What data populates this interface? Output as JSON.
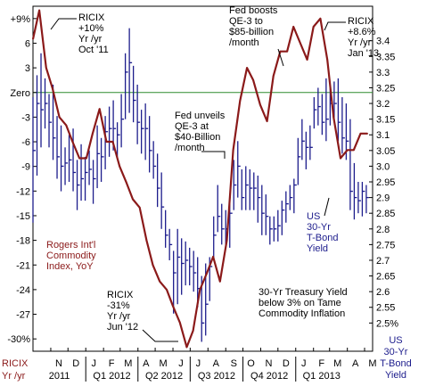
{
  "chart_data": {
    "type": "line",
    "series": [
      {
        "name": "Rogers Int'l Commodity Index, YoY",
        "axis": "left",
        "color": "#8b1a1a",
        "x": [
          "2011-10-01",
          "2011-10-12",
          "2011-10-24",
          "2011-11-04",
          "2011-11-16",
          "2011-11-28",
          "2011-12-09",
          "2011-12-21",
          "2012-01-02",
          "2012-01-13",
          "2012-01-25",
          "2012-02-06",
          "2012-02-17",
          "2012-02-29",
          "2012-03-12",
          "2012-03-23",
          "2012-04-04",
          "2012-04-16",
          "2012-04-27",
          "2012-05-09",
          "2012-05-21",
          "2012-06-01",
          "2012-06-13",
          "2012-06-25",
          "2012-07-06",
          "2012-07-18",
          "2012-07-30",
          "2012-08-10",
          "2012-08-22",
          "2012-09-03",
          "2012-09-14",
          "2012-09-26",
          "2012-10-08",
          "2012-10-19",
          "2012-10-31",
          "2012-11-12",
          "2012-11-23",
          "2012-12-05",
          "2012-12-17",
          "2012-12-28",
          "2013-01-09",
          "2013-01-21",
          "2013-02-01",
          "2013-02-13",
          "2013-02-25",
          "2013-03-08",
          "2013-03-20",
          "2013-04-01",
          "2013-04-12",
          "2013-04-24",
          "2013-05-06"
        ],
        "values": [
          6.5,
          10.0,
          3.0,
          0.5,
          -3.0,
          -4.0,
          -6.0,
          -8.0,
          -8.0,
          -5.0,
          -2.0,
          -6.0,
          -6.0,
          -9.0,
          -11.0,
          -13.0,
          -14.0,
          -18.0,
          -21.0,
          -23.0,
          -24.0,
          -26.0,
          -28.0,
          -31.0,
          -29.0,
          -24.0,
          -22.0,
          -20.0,
          -23.0,
          -18.0,
          -7.0,
          -1.0,
          3.0,
          1.5,
          -1.5,
          -3.5,
          2.0,
          5.0,
          5.0,
          8.0,
          6.0,
          4.0,
          8.0,
          9.0,
          4.0,
          -3.0,
          -8.0,
          -7.0,
          -7.0,
          -5.0,
          -5.0
        ]
      },
      {
        "name": "30-Yr T-Bond Yield",
        "axis": "right",
        "color": "#1c1c8c",
        "type": "hlc",
        "x": [
          "2011-10-01",
          "2011-10-08",
          "2011-10-15",
          "2011-10-22",
          "2011-10-29",
          "2011-11-05",
          "2011-11-12",
          "2011-11-19",
          "2011-11-26",
          "2011-12-03",
          "2011-12-10",
          "2011-12-17",
          "2011-12-24",
          "2011-12-31",
          "2012-01-07",
          "2012-01-14",
          "2012-01-21",
          "2012-01-28",
          "2012-02-04",
          "2012-02-11",
          "2012-02-18",
          "2012-02-25",
          "2012-03-03",
          "2012-03-10",
          "2012-03-17",
          "2012-03-24",
          "2012-03-31",
          "2012-04-07",
          "2012-04-14",
          "2012-04-21",
          "2012-04-28",
          "2012-05-05",
          "2012-05-12",
          "2012-05-19",
          "2012-05-26",
          "2012-06-02",
          "2012-06-09",
          "2012-06-16",
          "2012-06-23",
          "2012-06-30",
          "2012-07-07",
          "2012-07-14",
          "2012-07-21",
          "2012-07-28",
          "2012-08-04",
          "2012-08-11",
          "2012-08-18",
          "2012-08-25",
          "2012-09-01",
          "2012-09-08",
          "2012-09-15",
          "2012-09-22",
          "2012-09-29",
          "2012-10-06",
          "2012-10-13",
          "2012-10-20",
          "2012-10-27",
          "2012-11-03",
          "2012-11-10",
          "2012-11-17",
          "2012-11-24",
          "2012-12-01",
          "2012-12-08",
          "2012-12-15",
          "2012-12-22",
          "2012-12-29",
          "2013-01-05",
          "2013-01-12",
          "2013-01-19",
          "2013-01-26",
          "2013-02-02",
          "2013-02-09",
          "2013-02-16",
          "2013-02-23",
          "2013-03-02",
          "2013-03-09",
          "2013-03-16",
          "2013-03-23",
          "2013-03-30",
          "2013-04-06",
          "2013-04-13",
          "2013-04-20",
          "2013-04-27",
          "2013-05-04"
        ],
        "high": [
          3.22,
          3.29,
          3.36,
          3.28,
          3.23,
          3.26,
          3.16,
          3.13,
          3.06,
          3.1,
          3.12,
          3.02,
          3.07,
          3.03,
          3.05,
          3.02,
          3.13,
          3.09,
          3.16,
          3.19,
          3.21,
          3.14,
          3.23,
          3.36,
          3.44,
          3.32,
          3.26,
          3.18,
          3.2,
          3.16,
          3.08,
          3.04,
          2.98,
          2.86,
          2.8,
          2.73,
          2.8,
          2.77,
          2.76,
          2.74,
          2.73,
          2.71,
          2.65,
          2.69,
          2.71,
          2.84,
          2.94,
          2.88,
          2.86,
          2.91,
          3.02,
          3.08,
          2.99,
          3.0,
          2.99,
          2.98,
          2.97,
          2.94,
          2.91,
          2.84,
          2.84,
          2.86,
          2.89,
          2.92,
          2.94,
          2.96,
          3.09,
          3.15,
          3.11,
          3.13,
          3.22,
          3.25,
          3.23,
          3.28,
          3.26,
          3.27,
          3.28,
          3.22,
          3.2,
          3.15,
          3.01,
          2.95,
          2.95,
          2.94
        ],
        "low": [
          2.82,
          2.97,
          3.06,
          3.12,
          3.06,
          3.02,
          2.96,
          2.92,
          2.94,
          2.95,
          2.92,
          2.86,
          2.89,
          2.89,
          2.94,
          2.88,
          2.93,
          2.95,
          2.99,
          3.03,
          3.05,
          3.03,
          3.06,
          3.15,
          3.17,
          3.14,
          3.07,
          3.04,
          3.02,
          2.98,
          2.96,
          2.87,
          2.8,
          2.74,
          2.7,
          2.53,
          2.56,
          2.59,
          2.62,
          2.62,
          2.6,
          2.55,
          2.44,
          2.46,
          2.57,
          2.7,
          2.79,
          2.75,
          2.74,
          2.74,
          2.86,
          2.9,
          2.86,
          2.86,
          2.86,
          2.86,
          2.82,
          2.78,
          2.78,
          2.75,
          2.76,
          2.76,
          2.78,
          2.82,
          2.86,
          2.85,
          2.94,
          3.02,
          2.99,
          3.02,
          3.12,
          3.13,
          3.1,
          3.08,
          3.13,
          3.14,
          3.08,
          3.04,
          3.02,
          2.86,
          2.83,
          2.85,
          2.84,
          2.85
        ],
        "close": [
          3.05,
          3.2,
          3.18,
          3.2,
          3.14,
          3.09,
          3.03,
          3.0,
          3.01,
          3.02,
          2.98,
          2.94,
          2.96,
          2.98,
          2.99,
          2.96,
          3.04,
          3.03,
          3.11,
          3.12,
          3.12,
          3.1,
          3.15,
          3.3,
          3.33,
          3.21,
          3.14,
          3.12,
          3.12,
          3.05,
          3.0,
          2.93,
          2.87,
          2.78,
          2.75,
          2.66,
          2.71,
          2.69,
          2.7,
          2.68,
          2.66,
          2.61,
          2.5,
          2.56,
          2.68,
          2.78,
          2.84,
          2.8,
          2.8,
          2.85,
          2.94,
          3.0,
          2.9,
          2.94,
          2.93,
          2.93,
          2.9,
          2.85,
          2.84,
          2.8,
          2.8,
          2.81,
          2.86,
          2.88,
          2.9,
          2.94,
          3.03,
          3.08,
          3.06,
          3.06,
          3.18,
          3.19,
          3.14,
          3.15,
          3.2,
          3.2,
          3.14,
          3.09,
          3.08,
          2.92,
          2.9,
          2.89,
          2.92,
          2.9
        ]
      }
    ],
    "y_left": {
      "range": [
        -31.5,
        10.5
      ],
      "ticks": [
        9,
        6,
        3,
        0,
        -3,
        -6,
        -9,
        -12,
        -15,
        -18,
        -21,
        -24,
        -27,
        -30
      ],
      "tick_labels": [
        "+9%",
        "6",
        "3",
        "Zero",
        "-3",
        "-6",
        "-9",
        "-12",
        "-15",
        "-18",
        "-21",
        "-24",
        "-27",
        "-30%"
      ],
      "label": "RICIX Yr /yr"
    },
    "y_right": {
      "range": [
        2.41,
        3.51
      ],
      "ticks": [
        3.4,
        3.35,
        3.3,
        3.25,
        3.2,
        3.15,
        3.1,
        3.05,
        3.0,
        2.95,
        2.9,
        2.85,
        2.8,
        2.75,
        2.7,
        2.65,
        2.6,
        2.55,
        2.5
      ],
      "tick_labels": [
        "3.4",
        "3.35",
        "3.3",
        "3.25",
        "3.2",
        "3.15",
        "3.1",
        "3.05",
        "3.0",
        "2.95",
        "2.9",
        "2.85",
        "2.8",
        "2.75",
        "2.7",
        "2.65",
        "2.6",
        "2.55",
        "2.5%"
      ],
      "label": "US 30-Yr T-Bond Yield"
    },
    "x_axis": {
      "range": [
        "2011-10-01",
        "2013-05-15"
      ],
      "months": [
        "N",
        "D",
        "J",
        "F",
        "M",
        "A",
        "M",
        "J",
        "J",
        "A",
        "S",
        "O",
        "N",
        "D",
        "J",
        "F",
        "M",
        "A",
        "M"
      ],
      "month_dates": [
        "2011-11-15",
        "2011-12-15",
        "2012-01-15",
        "2012-02-15",
        "2012-03-15",
        "2012-04-15",
        "2012-05-15",
        "2012-06-15",
        "2012-07-15",
        "2012-08-15",
        "2012-09-15",
        "2012-10-15",
        "2012-11-15",
        "2012-12-15",
        "2013-01-15",
        "2013-02-15",
        "2013-03-15",
        "2013-04-15",
        "2013-05-15"
      ],
      "periods": [
        {
          "label": "2011",
          "start": "2011-10-01",
          "end": "2012-01-01"
        },
        {
          "label": "Q1 2012",
          "start": "2012-01-01",
          "end": "2012-04-01"
        },
        {
          "label": "Q2 2012",
          "start": "2012-04-01",
          "end": "2012-07-01"
        },
        {
          "label": "Q3 2012",
          "start": "2012-07-01",
          "end": "2012-10-01"
        },
        {
          "label": "Q4 2012",
          "start": "2012-10-01",
          "end": "2013-01-01"
        },
        {
          "label": "Q1 2013",
          "start": "2013-01-01",
          "end": "2013-04-01"
        }
      ]
    },
    "reference_line": {
      "label": "Zero",
      "value": 0,
      "color": "#2e8b2e"
    },
    "annotations": [
      {
        "name": "ricix-oct-11",
        "lines": [
          "RICIX",
          "+10%",
          "Yr /yr",
          "Oct '11"
        ],
        "color": "#000000"
      },
      {
        "name": "fed-qe3-85bn",
        "lines": [
          "Fed boosts",
          "QE-3 to",
          "$85-billion",
          "/month"
        ],
        "color": "#000000"
      },
      {
        "name": "ricix-jan-13",
        "lines": [
          "RICIX",
          "+8.6%",
          "Yr /yr",
          "Jan '13"
        ],
        "color": "#000000"
      },
      {
        "name": "fed-qe3-40bn",
        "lines": [
          "Fed unveils",
          "QE-3 at",
          "$40-Billion",
          "/month"
        ],
        "color": "#000000"
      },
      {
        "name": "rogers-series-label",
        "lines": [
          "Rogers Int'l",
          "Commodity",
          "Index, YoY"
        ],
        "color": "#8b1a1a"
      },
      {
        "name": "ricix-jun-12",
        "lines": [
          "RICIX",
          "-31%",
          "Yr /yr",
          "Jun '12"
        ],
        "color": "#000000"
      },
      {
        "name": "tbond-series-label",
        "lines": [
          "US",
          "30-Yr",
          "T-Bond",
          "Yield"
        ],
        "color": "#1c1c8c"
      },
      {
        "name": "chart-caption",
        "lines": [
          "30-Yr Treasury Yield",
          "below 3% on Tame",
          "Commodity Inflation"
        ],
        "color": "#000000"
      }
    ],
    "grid": false
  }
}
